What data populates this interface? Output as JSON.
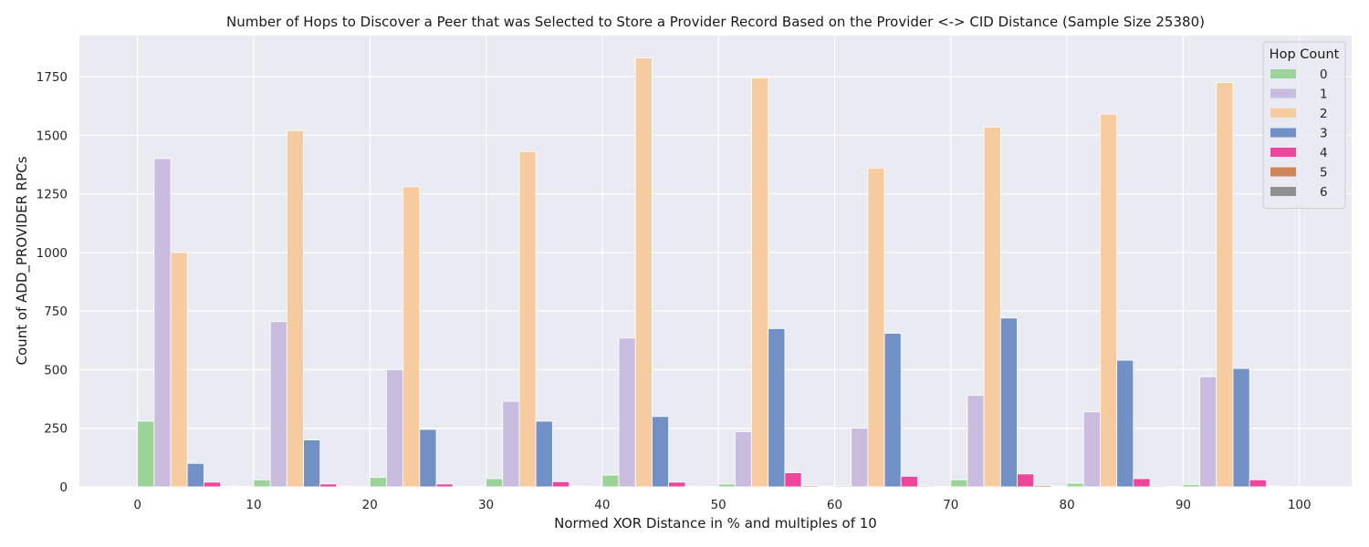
{
  "chart_data": {
    "type": "bar",
    "title": "Number of Hops to Discover a Peer that was Selected to Store a Provider Record Based on the Provider <-> CID Distance (Sample Size 25380)",
    "xlabel": "Normed XOR Distance in % and multiples of 10",
    "ylabel": "Count of ADD_PROVIDER RPCs",
    "x_ticks": [
      "0",
      "10",
      "20",
      "30",
      "40",
      "50",
      "60",
      "70",
      "80",
      "90",
      "100"
    ],
    "y_ticks": [
      "0",
      "250",
      "500",
      "750",
      "1000",
      "1250",
      "1500",
      "1750"
    ],
    "ylim": [
      0,
      1925
    ],
    "xlim": [
      -5,
      104.5
    ],
    "bin_width": 10,
    "bins": [
      0,
      10,
      20,
      30,
      40,
      50,
      60,
      70,
      80,
      90
    ],
    "grid": true,
    "legend": {
      "title": "Hop Count",
      "placement": "top-right"
    },
    "series": [
      {
        "name": "0",
        "color": "#98d294",
        "values": [
          280,
          30,
          40,
          35,
          50,
          12,
          5,
          30,
          15,
          10
        ]
      },
      {
        "name": "1",
        "color": "#c8b9dc",
        "values": [
          1400,
          705,
          500,
          365,
          635,
          235,
          250,
          390,
          320,
          470
        ]
      },
      {
        "name": "2",
        "color": "#f8c99b",
        "values": [
          1000,
          1520,
          1280,
          1430,
          1830,
          1745,
          1360,
          1535,
          1590,
          1725
        ]
      },
      {
        "name": "3",
        "color": "#6a8bc2",
        "values": [
          100,
          200,
          245,
          280,
          300,
          675,
          655,
          720,
          540,
          505
        ]
      },
      {
        "name": "4",
        "color": "#ec3e96",
        "values": [
          20,
          12,
          12,
          22,
          20,
          60,
          45,
          55,
          35,
          30
        ]
      },
      {
        "name": "5",
        "color": "#cc804f",
        "values": [
          3,
          2,
          2,
          3,
          2,
          5,
          4,
          6,
          4,
          3
        ]
      },
      {
        "name": "6",
        "color": "#8a8a8a",
        "values": [
          1,
          1,
          1,
          1,
          1,
          2,
          1,
          2,
          1,
          1
        ]
      }
    ]
  }
}
